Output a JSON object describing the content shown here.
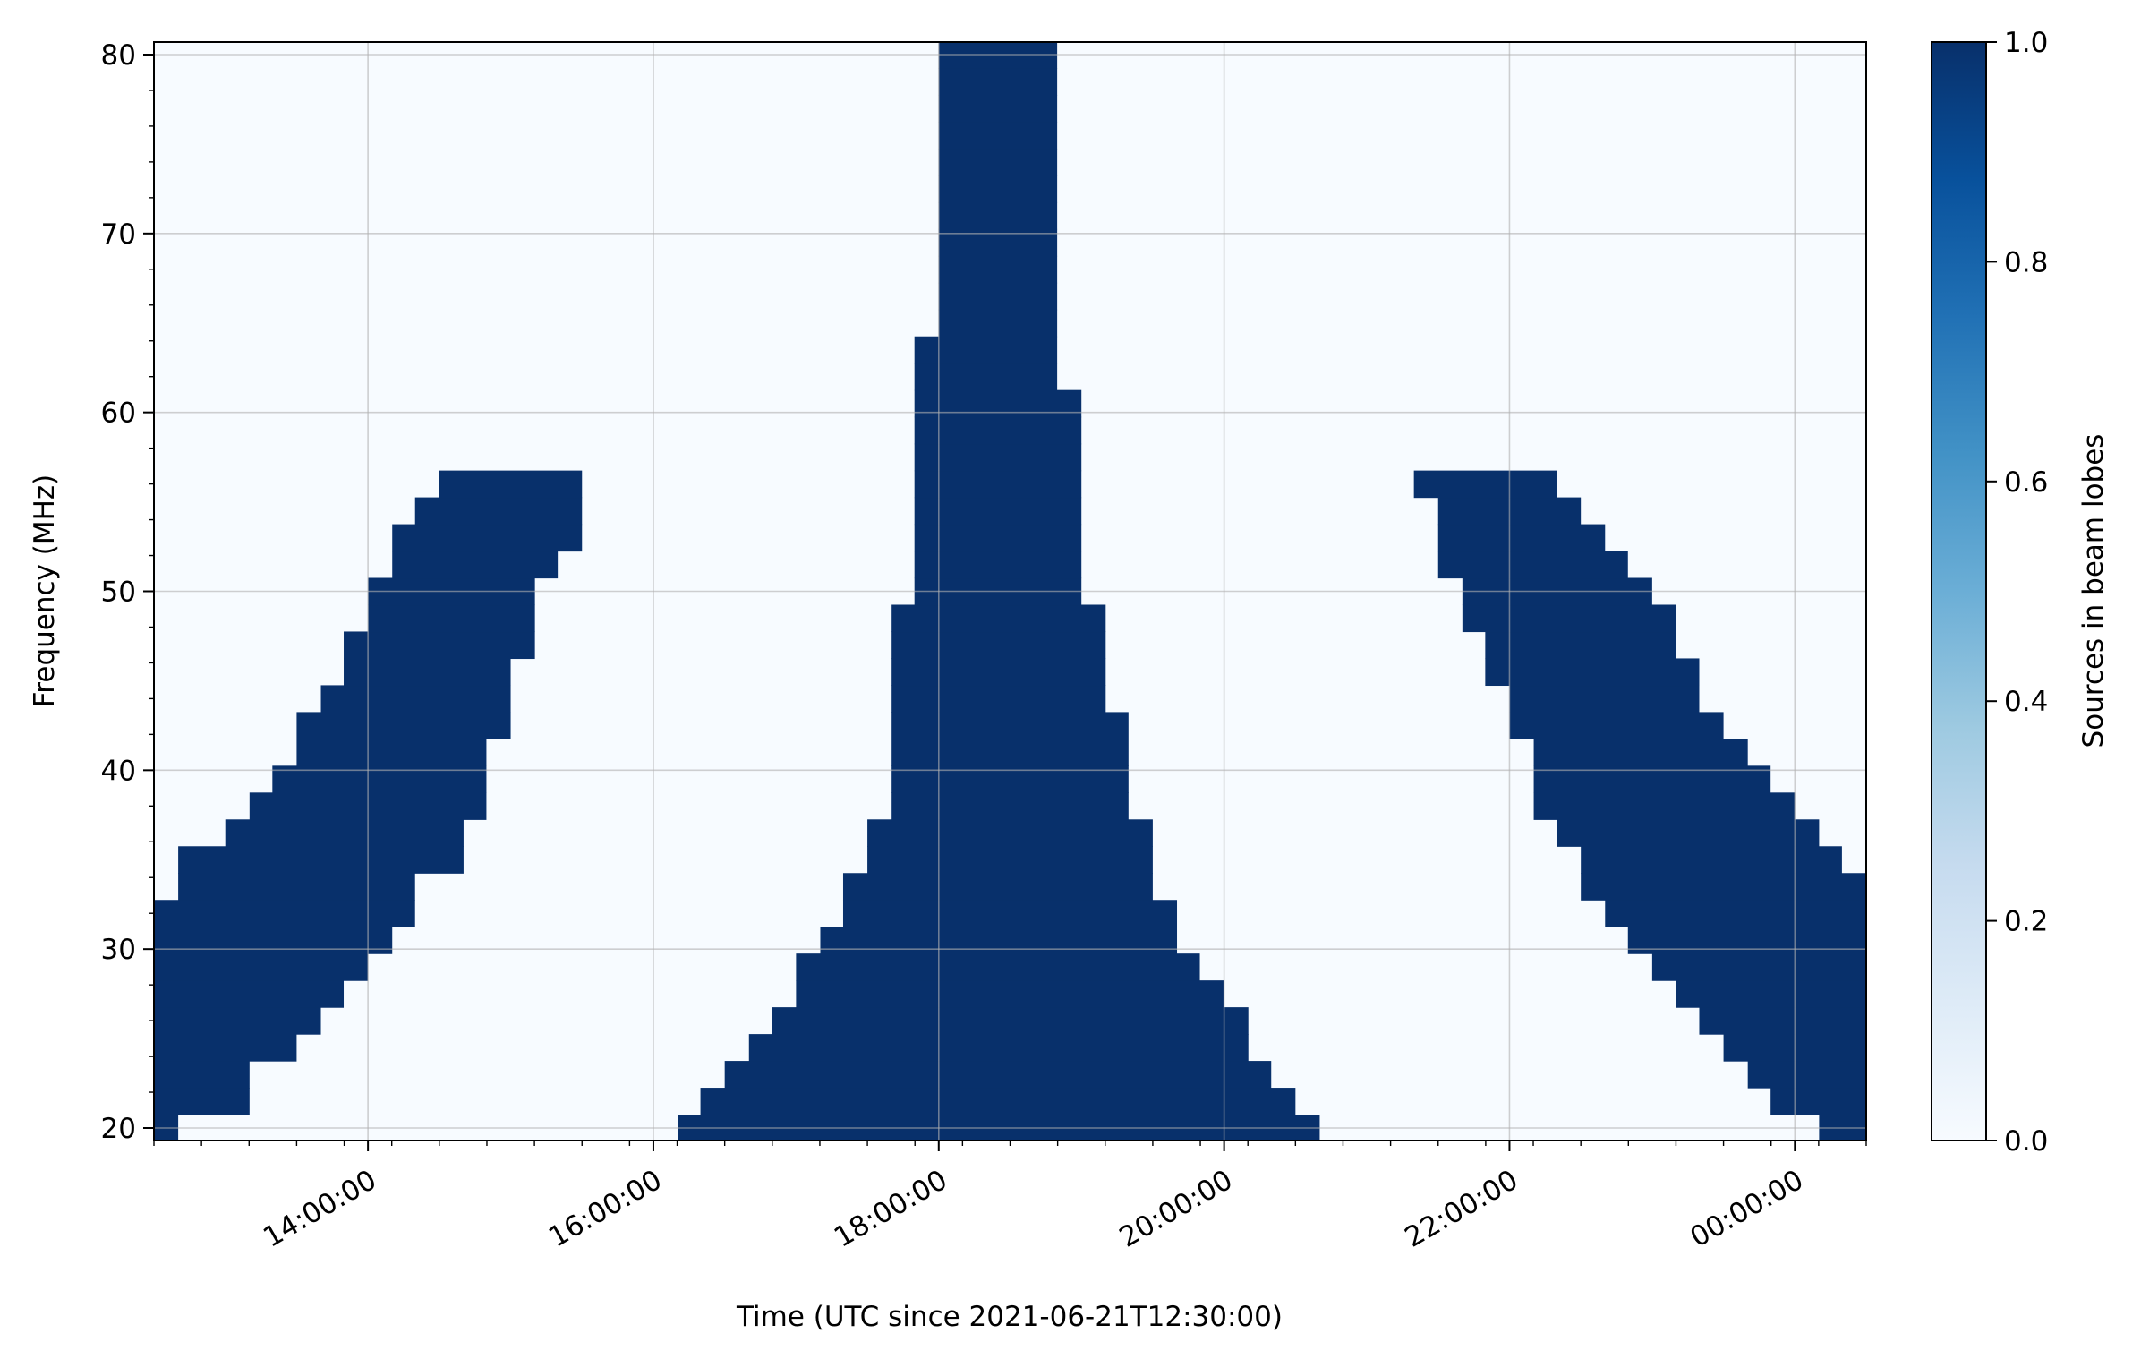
{
  "chart_data": {
    "type": "heatmap",
    "title": "",
    "xlabel": "Time (UTC since 2021-06-21T12:30:00)",
    "ylabel": "Frequency (MHz)",
    "colorbar_label": "Sources in beam lobes",
    "colormap": "Blues",
    "colors": {
      "low": "#f7fbff",
      "high": "#08306b",
      "grid": "#b0b0b0"
    },
    "grid": true,
    "x_unit": "hours since 2021-06-21T12:30:00",
    "xlim": [
      0,
      12
    ],
    "ylim": [
      19.3,
      80.7
    ],
    "clim": [
      0,
      1
    ],
    "x_tick_labels": [
      {
        "x": 1.5,
        "label": "14:00:00"
      },
      {
        "x": 3.5,
        "label": "16:00:00"
      },
      {
        "x": 5.5,
        "label": "18:00:00"
      },
      {
        "x": 7.5,
        "label": "20:00:00"
      },
      {
        "x": 9.5,
        "label": "22:00:00"
      },
      {
        "x": 11.5,
        "label": "00:00:00"
      }
    ],
    "y_ticks": [
      20,
      30,
      40,
      50,
      60,
      70,
      80
    ],
    "colorbar_ticks": [
      0.0,
      0.2,
      0.4,
      0.6,
      0.8,
      1.0
    ],
    "colorbar_tick_labels": [
      "0.0",
      "0.2",
      "0.4",
      "0.6",
      "0.8",
      "1.0"
    ],
    "band_frequencies_mhz": [
      20.0,
      21.5,
      23.0,
      24.5,
      26.0,
      27.5,
      29.0,
      30.5,
      32.0,
      33.5,
      35.0,
      36.5,
      38.0,
      39.5,
      41.0,
      42.5,
      44.0,
      45.5,
      47.0,
      48.5,
      50.0,
      51.5,
      53.0,
      54.5,
      56.0,
      57.5,
      59.0,
      60.5,
      62.0,
      63.5,
      65.0,
      66.5,
      68.0,
      69.5,
      71.0,
      72.5,
      74.0,
      75.5,
      77.0,
      78.5,
      80.0
    ],
    "series": [
      {
        "value": 1,
        "time_intervals_hours": [
          [
            0,
            0.17
          ],
          [
            0,
            0.67
          ],
          [
            0,
            0.67
          ],
          [
            0,
            1.0
          ],
          [
            0,
            1.17
          ],
          [
            0,
            1.33
          ],
          [
            0,
            1.5
          ],
          [
            0,
            1.67
          ],
          [
            0,
            1.83
          ],
          [
            0.17,
            1.83
          ],
          [
            0.17,
            2.17
          ],
          [
            0.5,
            2.17
          ],
          [
            0.67,
            2.33
          ],
          [
            0.83,
            2.33
          ],
          [
            1.0,
            2.33
          ],
          [
            1.0,
            2.5
          ],
          [
            1.17,
            2.5
          ],
          [
            1.33,
            2.5
          ],
          [
            1.33,
            2.67
          ],
          [
            1.5,
            2.67
          ],
          [
            1.5,
            2.67
          ],
          [
            1.67,
            2.83
          ],
          [
            1.67,
            3.0
          ],
          [
            1.83,
            3.0
          ],
          [
            2.0,
            3.0
          ]
        ]
      },
      {
        "value": 1,
        "time_intervals_hours": [
          [
            3.67,
            8.17
          ],
          [
            3.83,
            8.0
          ],
          [
            4.0,
            7.83
          ],
          [
            4.17,
            7.67
          ],
          [
            4.33,
            7.67
          ],
          [
            4.5,
            7.5
          ],
          [
            4.5,
            7.33
          ],
          [
            4.67,
            7.17
          ],
          [
            4.83,
            7.17
          ],
          [
            4.83,
            7.0
          ],
          [
            5.0,
            7.0
          ],
          [
            5.0,
            7.0
          ],
          [
            5.17,
            6.83
          ],
          [
            5.17,
            6.83
          ],
          [
            5.17,
            6.83
          ],
          [
            5.17,
            6.83
          ],
          [
            5.17,
            6.67
          ],
          [
            5.17,
            6.67
          ],
          [
            5.17,
            6.67
          ],
          [
            5.17,
            6.67
          ],
          [
            5.33,
            6.5
          ],
          [
            5.33,
            6.5
          ],
          [
            5.33,
            6.5
          ],
          [
            5.33,
            6.5
          ],
          [
            5.33,
            6.5
          ],
          [
            5.33,
            6.5
          ],
          [
            5.33,
            6.5
          ],
          [
            5.33,
            6.5
          ],
          [
            5.33,
            6.33
          ],
          [
            5.33,
            6.33
          ],
          [
            5.5,
            6.33
          ],
          [
            5.5,
            6.33
          ],
          [
            5.5,
            6.33
          ],
          [
            5.5,
            6.33
          ],
          [
            5.5,
            6.33
          ],
          [
            5.5,
            6.33
          ],
          [
            5.5,
            6.33
          ],
          [
            5.5,
            6.33
          ],
          [
            5.5,
            6.33
          ],
          [
            5.5,
            6.33
          ],
          [
            5.5,
            6.33
          ]
        ]
      },
      {
        "value": 1,
        "time_intervals_hours": [
          [
            11.67,
            12
          ],
          [
            11.33,
            12
          ],
          [
            11.17,
            12
          ],
          [
            11.0,
            12
          ],
          [
            10.83,
            12
          ],
          [
            10.67,
            12
          ],
          [
            10.5,
            12
          ],
          [
            10.33,
            12
          ],
          [
            10.17,
            12
          ],
          [
            10.0,
            12
          ],
          [
            10.0,
            11.83
          ],
          [
            9.83,
            11.67
          ],
          [
            9.67,
            11.5
          ],
          [
            9.67,
            11.33
          ],
          [
            9.67,
            11.17
          ],
          [
            9.5,
            11.0
          ],
          [
            9.5,
            10.83
          ],
          [
            9.33,
            10.83
          ],
          [
            9.33,
            10.67
          ],
          [
            9.17,
            10.67
          ],
          [
            9.17,
            10.5
          ],
          [
            9.0,
            10.33
          ],
          [
            9.0,
            10.17
          ],
          [
            9.0,
            10.0
          ],
          [
            8.83,
            9.83
          ]
        ]
      }
    ]
  }
}
